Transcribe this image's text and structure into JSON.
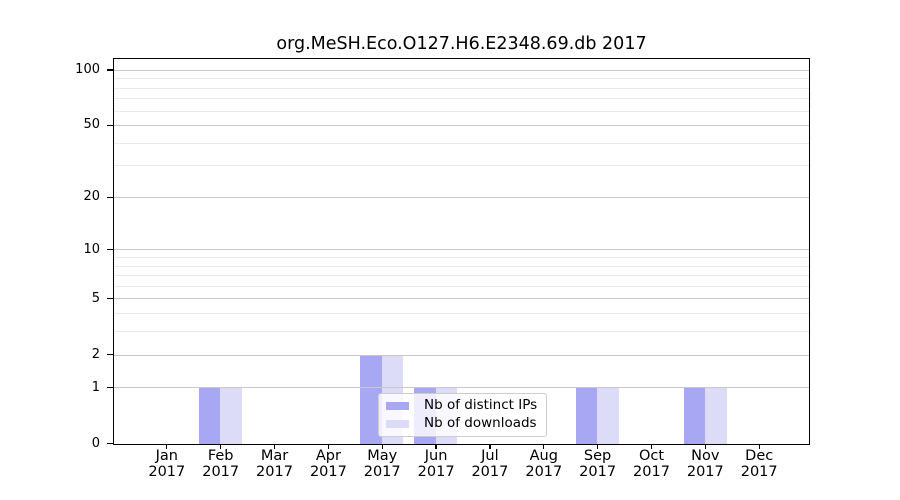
{
  "chart_data": {
    "type": "bar",
    "title": "org.MeSH.Eco.O127.H6.E2348.69.db 2017",
    "categories": [
      "Jan 2017",
      "Feb 2017",
      "Mar 2017",
      "Apr 2017",
      "May 2017",
      "Jun 2017",
      "Jul 2017",
      "Aug 2017",
      "Sep 2017",
      "Oct 2017",
      "Nov 2017",
      "Dec 2017"
    ],
    "x_tick_months": [
      "Jan",
      "Feb",
      "Mar",
      "Apr",
      "May",
      "Jun",
      "Jul",
      "Aug",
      "Sep",
      "Oct",
      "Nov",
      "Dec"
    ],
    "x_tick_year": "2017",
    "series": [
      {
        "name": "Nb of distinct IPs",
        "color": "#a7a7f3",
        "values": [
          0,
          1,
          0,
          0,
          2,
          1,
          0,
          0,
          1,
          0,
          1,
          0
        ]
      },
      {
        "name": "Nb of downloads",
        "color": "#dcdcf9",
        "values": [
          0,
          1,
          0,
          0,
          2,
          1,
          0,
          0,
          1,
          0,
          1,
          0
        ]
      }
    ],
    "y_axis": {
      "scale": "log1p",
      "tick_labels": [
        "0",
        "1",
        "2",
        "5",
        "10",
        "20",
        "50",
        "100"
      ],
      "tick_values": [
        0,
        1,
        2,
        5,
        10,
        20,
        50,
        100
      ],
      "minor_gridline_values": [
        3,
        4,
        6,
        7,
        8,
        9,
        30,
        40,
        60,
        70,
        80,
        90
      ],
      "ylim": [
        0,
        118
      ]
    },
    "grid": "horizontal",
    "legend": {
      "position": "inside-bottom-center",
      "items": [
        "Nb of distinct IPs",
        "Nb of downloads"
      ]
    }
  },
  "colors": {
    "background": "#ffffff",
    "bar_distinct_ips": "#a7a7f3",
    "bar_downloads": "#dcdcf9",
    "grid_major": "#c9c9c9",
    "grid_minor": "#eaeaea",
    "axis": "#000000",
    "text": "#000000",
    "legend_border": "#cccccc"
  }
}
